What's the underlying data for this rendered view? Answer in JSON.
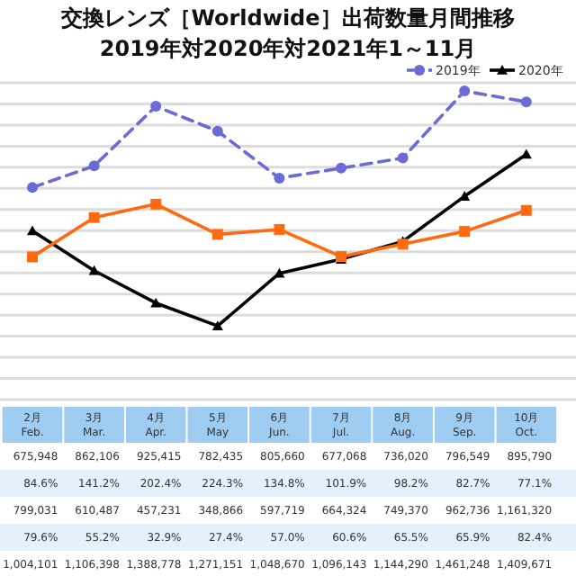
{
  "chart_data": {
    "type": "line",
    "title": "交換レンズ［Worldwide］出荷数量月間推移",
    "subtitle": "2019年対2020年対2021年1～11月",
    "categories": [
      "2月\nFeb.",
      "3月\nMar.",
      "4月\nApr.",
      "5月\nMay",
      "6月\nJun.",
      "7月\nJul.",
      "8月\nAug.",
      "9月\nSep.",
      "10月\nOct."
    ],
    "series": [
      {
        "name": "2019年",
        "color": "#6b6bd6",
        "marker": "circle",
        "line_style": "dashed",
        "values": [
          1004101,
          1106398,
          1388778,
          1271151,
          1048670,
          1096143,
          1144290,
          1461248,
          1409671
        ],
        "value_labels": [
          "1,004,101",
          "1,106,398",
          "1,388,778",
          "1,271,151",
          "1,048,670",
          "1,096,143",
          "1,144,290",
          "1,461,248",
          "1,409,671"
        ]
      },
      {
        "name": "2020年",
        "color": "#000000",
        "marker": "triangle",
        "line_style": "solid",
        "values": [
          799031,
          610487,
          457231,
          348866,
          597719,
          664324,
          749370,
          962736,
          1161320
        ],
        "value_labels": [
          "799,031",
          "610,487",
          "457,231",
          "348,866",
          "597,719",
          "664,324",
          "749,370",
          "962,736",
          "1,161,320"
        ]
      },
      {
        "color": "#ff6a10",
        "marker": "square",
        "line_style": "solid",
        "values": [
          675948,
          862106,
          925415,
          782435,
          805660,
          677068,
          736020,
          796549,
          895790
        ],
        "value_labels": [
          "675,948",
          "862,106",
          "925,415",
          "782,435",
          "805,660",
          "677,068",
          "736,020",
          "796,549",
          "895,790"
        ]
      }
    ],
    "grid": "y",
    "legend": "top right",
    "annotations": [
      "84.6%",
      "141.2%",
      "202.4%",
      "224.3%",
      "134.8%",
      "101.9%",
      "98.2%",
      "82.7%",
      "77.1%",
      "79.6%",
      "55.2%",
      "32.9%",
      "27.4%",
      "57.0%",
      "60.6%",
      "65.5%",
      "65.9%",
      "82.4%"
    ]
  }
}
